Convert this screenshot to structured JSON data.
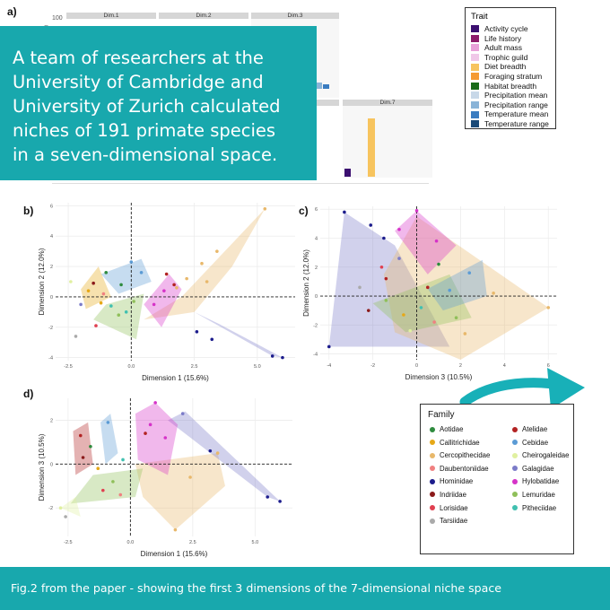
{
  "panel_labels": {
    "a": "a)",
    "b": "b)",
    "c": "c)",
    "d": "d)"
  },
  "top_chart": {
    "ytick_top": "100",
    "ylabel_partial": "on",
    "facets": [
      "Dim.1",
      "Dim.2",
      "Dim.3",
      "Dim.7"
    ]
  },
  "overlay_text": {
    "lines": [
      "A team of researchers at the",
      "University of Cambridge and",
      "University of Zurich calculated",
      "niches of 191 primate species",
      "in a seven-dimensional space."
    ],
    "background": "#18a8ad"
  },
  "trait_legend": {
    "title": "Trait",
    "items": [
      {
        "label": "Activity cycle",
        "color": "#3b0f70"
      },
      {
        "label": "Life history",
        "color": "#8c1a6a"
      },
      {
        "label": "Adult mass",
        "color": "#e8a0d8"
      },
      {
        "label": "Trophic guild",
        "color": "#f0c8e8"
      },
      {
        "label": "Diet breadth",
        "color": "#f7c45e"
      },
      {
        "label": "Foraging stratum",
        "color": "#f59a32"
      },
      {
        "label": "Habitat breadth",
        "color": "#1a6b1a"
      },
      {
        "label": "Precipitation mean",
        "color": "#c8d8e8"
      },
      {
        "label": "Precipitation range",
        "color": "#8ab4d8"
      },
      {
        "label": "Temperature mean",
        "color": "#3a7cc0"
      },
      {
        "label": "Temperature range",
        "color": "#1a4a78"
      }
    ]
  },
  "family_legend": {
    "title": "Family",
    "items": [
      {
        "label": "Aotidae",
        "color": "#2e8b3e"
      },
      {
        "label": "Atelidae",
        "color": "#b22222"
      },
      {
        "label": "Callitrichidae",
        "color": "#e6a817"
      },
      {
        "label": "Cebidae",
        "color": "#5b9bd5"
      },
      {
        "label": "Cercopithecidae",
        "color": "#e8b86b"
      },
      {
        "label": "Cheirogaleidae",
        "color": "#e0f0a0"
      },
      {
        "label": "Daubentoniidae",
        "color": "#f08080"
      },
      {
        "label": "Galagidae",
        "color": "#7b7bc8"
      },
      {
        "label": "Hominidae",
        "color": "#1c1c8c"
      },
      {
        "label": "Hylobatidae",
        "color": "#d633c8"
      },
      {
        "label": "Indriidae",
        "color": "#8b1a1a"
      },
      {
        "label": "Lemuridae",
        "color": "#8fbf5a"
      },
      {
        "label": "Lorisidae",
        "color": "#e04050"
      },
      {
        "label": "Pitheciidae",
        "color": "#40c0b0"
      },
      {
        "label": "Tarsiidae",
        "color": "#aaaaaa"
      }
    ]
  },
  "chart_data": [
    {
      "type": "bar",
      "panel": "a)",
      "facets": [
        "Dim.1",
        "Dim.2",
        "Dim.3",
        "Dim.7"
      ],
      "yticks": [
        100
      ],
      "note": "partially covered by overlay text box",
      "visible_bars": [
        {
          "facet": "Dim.3",
          "trait": "Precipitation range",
          "value": 10
        },
        {
          "facet": "Dim.3",
          "trait": "Temperature mean",
          "value": 8
        },
        {
          "facet": "Dim.7",
          "trait": "Activity cycle",
          "value": 10
        },
        {
          "facet": "Dim.7",
          "trait": "Diet breadth",
          "value": 80
        }
      ]
    },
    {
      "type": "scatter",
      "panel": "b)",
      "xlabel": "Dimension 1 (15.6%)",
      "ylabel": "Dimension 2 (12.0%)",
      "xlim": [
        -3,
        6.5
      ],
      "ylim": [
        -4.2,
        6.2
      ],
      "xticks": [
        "-2.5",
        "0.0",
        "2.5",
        "5.0"
      ],
      "yticks": [
        "6",
        "4",
        "2",
        "0",
        "-2",
        "-4"
      ],
      "xticks_num": [
        -2.5,
        0,
        2.5,
        5.0
      ],
      "yticks_num": [
        6,
        4,
        2,
        0,
        -2,
        -4
      ],
      "hulls": [
        {
          "family": "Cercopithecidae",
          "points": [
            [
              2.0,
              0.0
            ],
            [
              5.3,
              5.8
            ],
            [
              4.0,
              2.0
            ],
            [
              2.5,
              -1.0
            ],
            [
              0.5,
              -1.5
            ]
          ]
        },
        {
          "family": "Galagidae",
          "points": [
            [
              2.5,
              -1.0
            ],
            [
              5.6,
              -3.9
            ],
            [
              6.0,
              -4.0
            ],
            [
              3.5,
              -1.8
            ]
          ]
        },
        {
          "family": "Hylobatidae",
          "points": [
            [
              0.5,
              -0.5
            ],
            [
              1.5,
              1.5
            ],
            [
              2.0,
              0.5
            ],
            [
              1.2,
              -2.0
            ]
          ]
        },
        {
          "family": "Cebidae",
          "points": [
            [
              -1.2,
              1.5
            ],
            [
              0.4,
              2.5
            ],
            [
              0.8,
              1.0
            ],
            [
              -0.5,
              0.2
            ]
          ]
        },
        {
          "family": "Callitrichidae",
          "points": [
            [
              -2.0,
              0.5
            ],
            [
              -1.3,
              2.0
            ],
            [
              -0.8,
              0.0
            ],
            [
              -1.8,
              -0.8
            ]
          ]
        },
        {
          "family": "Lemuridae",
          "points": [
            [
              -1.0,
              -0.5
            ],
            [
              0.5,
              0.2
            ],
            [
              0.2,
              -2.8
            ],
            [
              -1.5,
              -1.5
            ]
          ]
        }
      ],
      "points": [
        {
          "family": "Hominidae",
          "x": 5.6,
          "y": -3.9
        },
        {
          "family": "Hominidae",
          "x": 6.0,
          "y": -4.0
        },
        {
          "family": "Hominidae",
          "x": 3.2,
          "y": -2.8
        },
        {
          "family": "Hominidae",
          "x": 2.6,
          "y": -2.3
        },
        {
          "family": "Cercopithecidae",
          "x": 5.3,
          "y": 5.8
        },
        {
          "family": "Cercopithecidae",
          "x": 3.4,
          "y": 3.0
        },
        {
          "family": "Cercopithecidae",
          "x": 2.8,
          "y": 2.2
        },
        {
          "family": "Cercopithecidae",
          "x": 2.2,
          "y": 1.2
        },
        {
          "family": "Cercopithecidae",
          "x": 3.0,
          "y": 1.0
        },
        {
          "family": "Cercopithecidae",
          "x": 1.8,
          "y": 0.6
        },
        {
          "family": "Hylobatidae",
          "x": 1.3,
          "y": 0.4
        },
        {
          "family": "Hylobatidae",
          "x": 0.9,
          "y": -0.5
        },
        {
          "family": "Atelidae",
          "x": 1.4,
          "y": 1.5
        },
        {
          "family": "Atelidae",
          "x": 1.7,
          "y": 0.8
        },
        {
          "family": "Cebidae",
          "x": 0.0,
          "y": 2.3
        },
        {
          "family": "Cebidae",
          "x": 0.4,
          "y": 1.6
        },
        {
          "family": "Aotidae",
          "x": -1.0,
          "y": 1.6
        },
        {
          "family": "Aotidae",
          "x": -0.4,
          "y": 0.8
        },
        {
          "family": "Callitrichidae",
          "x": -1.7,
          "y": 0.4
        },
        {
          "family": "Callitrichidae",
          "x": -1.2,
          "y": -0.4
        },
        {
          "family": "Lemuridae",
          "x": -0.5,
          "y": -1.2
        },
        {
          "family": "Lemuridae",
          "x": 0.1,
          "y": -0.3
        },
        {
          "family": "Pitheciidae",
          "x": -0.8,
          "y": -0.6
        },
        {
          "family": "Pitheciidae",
          "x": -0.2,
          "y": -1.0
        },
        {
          "family": "Indriidae",
          "x": -1.5,
          "y": 0.9
        },
        {
          "family": "Galagidae",
          "x": -2.0,
          "y": -0.5
        },
        {
          "family": "Tarsiidae",
          "x": -2.2,
          "y": -2.6
        },
        {
          "family": "Lorisidae",
          "x": -1.4,
          "y": -1.9
        },
        {
          "family": "Cheirogaleidae",
          "x": -2.4,
          "y": 1.0
        },
        {
          "family": "Daubentoniidae",
          "x": -1.1,
          "y": 0.2
        }
      ]
    },
    {
      "type": "scatter",
      "panel": "c)",
      "xlabel": "Dimension 3 (10.5%)",
      "ylabel": "Dimension 2 (12.0%)",
      "xlim": [
        -4.4,
        6.4
      ],
      "ylim": [
        -4.4,
        6.2
      ],
      "xticks": [
        "-4",
        "-2",
        "0",
        "2",
        "4",
        "6"
      ],
      "yticks": [
        "6",
        "4",
        "2",
        "0",
        "-2",
        "-4"
      ],
      "xticks_num": [
        -4,
        -2,
        0,
        2,
        4,
        6
      ],
      "yticks_num": [
        6,
        4,
        2,
        0,
        -2,
        -4
      ],
      "hulls": [
        {
          "family": "Galagidae",
          "points": [
            [
              -4.0,
              -3.5
            ],
            [
              -3.3,
              5.8
            ],
            [
              -1.0,
              3.5
            ],
            [
              1.5,
              -3.5
            ]
          ]
        },
        {
          "family": "Cercopithecidae",
          "points": [
            [
              0.0,
              5.5
            ],
            [
              6.0,
              -0.8
            ],
            [
              2.0,
              -4.4
            ],
            [
              -1.0,
              -2.5
            ],
            [
              -1.5,
              1.5
            ]
          ]
        },
        {
          "family": "Hylobatidae",
          "points": [
            [
              -1.0,
              4.5
            ],
            [
              0.0,
              5.9
            ],
            [
              1.8,
              3.5
            ],
            [
              0.5,
              1.5
            ]
          ]
        },
        {
          "family": "Lemuridae",
          "points": [
            [
              -2.0,
              -0.5
            ],
            [
              1.5,
              1.5
            ],
            [
              2.5,
              -1.5
            ],
            [
              -0.5,
              -2.5
            ]
          ]
        },
        {
          "family": "Cebidae",
          "points": [
            [
              0.5,
              0.5
            ],
            [
              3.0,
              2.5
            ],
            [
              3.2,
              0.0
            ],
            [
              1.2,
              -1.0
            ]
          ]
        }
      ],
      "points": [
        {
          "family": "Hominidae",
          "x": -4.0,
          "y": -3.5
        },
        {
          "family": "Hominidae",
          "x": -3.3,
          "y": 5.8
        },
        {
          "family": "Hominidae",
          "x": -2.1,
          "y": 4.9
        },
        {
          "family": "Hominidae",
          "x": -1.5,
          "y": 4.0
        },
        {
          "family": "Cercopithecidae",
          "x": 6.0,
          "y": -0.8
        },
        {
          "family": "Cercopithecidae",
          "x": 3.5,
          "y": 0.2
        },
        {
          "family": "Cercopithecidae",
          "x": 2.2,
          "y": -2.6
        },
        {
          "family": "Hylobatidae",
          "x": 0.0,
          "y": 5.9
        },
        {
          "family": "Hylobatidae",
          "x": -0.8,
          "y": 4.6
        },
        {
          "family": "Hylobatidae",
          "x": 0.9,
          "y": 3.8
        },
        {
          "family": "Atelidae",
          "x": -1.4,
          "y": 1.2
        },
        {
          "family": "Atelidae",
          "x": 0.5,
          "y": 0.6
        },
        {
          "family": "Cebidae",
          "x": 2.4,
          "y": 1.6
        },
        {
          "family": "Cebidae",
          "x": 1.5,
          "y": 0.4
        },
        {
          "family": "Aotidae",
          "x": 1.0,
          "y": 2.2
        },
        {
          "family": "Callitrichidae",
          "x": -0.6,
          "y": -1.3
        },
        {
          "family": "Lemuridae",
          "x": 1.8,
          "y": -1.5
        },
        {
          "family": "Lemuridae",
          "x": -1.4,
          "y": -0.3
        },
        {
          "family": "Pitheciidae",
          "x": 0.2,
          "y": -0.8
        },
        {
          "family": "Indriidae",
          "x": -2.2,
          "y": -1.0
        },
        {
          "family": "Galagidae",
          "x": -0.8,
          "y": 2.6
        },
        {
          "family": "Lorisidae",
          "x": -1.6,
          "y": 2.0
        },
        {
          "family": "Cheirogaleidae",
          "x": -0.3,
          "y": -2.4
        },
        {
          "family": "Daubentoniidae",
          "x": 0.8,
          "y": -1.8
        },
        {
          "family": "Tarsiidae",
          "x": -2.6,
          "y": 0.6
        }
      ]
    },
    {
      "type": "scatter",
      "panel": "d)",
      "xlabel": "Dimension 1 (15.6%)",
      "ylabel": "Dimension 3 (10.5%)",
      "xlim": [
        -3,
        6.5
      ],
      "ylim": [
        -3.3,
        3.0
      ],
      "xticks": [
        "-2.5",
        "0.0",
        "2.5",
        "5.0"
      ],
      "yticks": [
        "2",
        "0",
        "-2"
      ],
      "xticks_num": [
        -2.5,
        0,
        2.5,
        5.0
      ],
      "yticks_num": [
        2,
        0,
        -2
      ],
      "hulls": [
        {
          "family": "Cercopithecidae",
          "points": [
            [
              0.2,
              0.0
            ],
            [
              3.5,
              0.5
            ],
            [
              3.8,
              -1.0
            ],
            [
              1.8,
              -3.0
            ],
            [
              0.5,
              -1.5
            ]
          ]
        },
        {
          "family": "Galagidae",
          "points": [
            [
              1.5,
              2.0
            ],
            [
              2.2,
              2.4
            ],
            [
              6.0,
              -1.7
            ],
            [
              5.5,
              -1.5
            ]
          ]
        },
        {
          "family": "Hylobatidae",
          "points": [
            [
              0.2,
              2.3
            ],
            [
              1.0,
              2.8
            ],
            [
              1.9,
              1.8
            ],
            [
              1.5,
              -0.5
            ],
            [
              0.3,
              0.2
            ]
          ]
        },
        {
          "family": "Atelidae",
          "points": [
            [
              -2.3,
              1.5
            ],
            [
              -1.7,
              1.9
            ],
            [
              -1.5,
              0.0
            ],
            [
              -2.2,
              -0.5
            ]
          ]
        },
        {
          "family": "Cebidae",
          "points": [
            [
              -1.2,
              1.9
            ],
            [
              -0.8,
              2.3
            ],
            [
              -0.5,
              0.5
            ],
            [
              -1.0,
              0.0
            ]
          ]
        },
        {
          "family": "Lemuridae",
          "points": [
            [
              -1.5,
              -0.5
            ],
            [
              0.5,
              -0.2
            ],
            [
              0.2,
              -1.5
            ],
            [
              -2.4,
              -1.8
            ]
          ]
        },
        {
          "family": "Cheirogaleidae",
          "points": [
            [
              -2.8,
              -2.0
            ],
            [
              -2.2,
              -1.5
            ],
            [
              -2.0,
              -2.4
            ]
          ]
        }
      ],
      "points": [
        {
          "family": "Hominidae",
          "x": 6.0,
          "y": -1.7
        },
        {
          "family": "Hominidae",
          "x": 5.5,
          "y": -1.5
        },
        {
          "family": "Hominidae",
          "x": 3.2,
          "y": 0.6
        },
        {
          "family": "Cercopithecidae",
          "x": 1.8,
          "y": -3.0
        },
        {
          "family": "Cercopithecidae",
          "x": 3.5,
          "y": 0.5
        },
        {
          "family": "Cercopithecidae",
          "x": 2.4,
          "y": -0.6
        },
        {
          "family": "Hylobatidae",
          "x": 1.0,
          "y": 2.8
        },
        {
          "family": "Hylobatidae",
          "x": 0.8,
          "y": 1.8
        },
        {
          "family": "Hylobatidae",
          "x": 1.4,
          "y": 1.2
        },
        {
          "family": "Atelidae",
          "x": -2.0,
          "y": 1.3
        },
        {
          "family": "Atelidae",
          "x": 0.6,
          "y": 1.4
        },
        {
          "family": "Cebidae",
          "x": -0.9,
          "y": 1.9
        },
        {
          "family": "Aotidae",
          "x": -1.6,
          "y": 0.8
        },
        {
          "family": "Callitrichidae",
          "x": -1.3,
          "y": -0.2
        },
        {
          "family": "Lemuridae",
          "x": -0.7,
          "y": -0.8
        },
        {
          "family": "Pitheciidae",
          "x": -0.3,
          "y": 0.2
        },
        {
          "family": "Indriidae",
          "x": -1.9,
          "y": 0.3
        },
        {
          "family": "Galagidae",
          "x": 2.1,
          "y": 2.3
        },
        {
          "family": "Lorisidae",
          "x": -1.1,
          "y": -1.2
        },
        {
          "family": "Cheirogaleidae",
          "x": -2.8,
          "y": -2.0
        },
        {
          "family": "Daubentoniidae",
          "x": -0.4,
          "y": -1.4
        },
        {
          "family": "Tarsiidae",
          "x": -2.6,
          "y": -2.4
        }
      ]
    }
  ],
  "footer": {
    "text": "Fig.2 from the paper - showing the first 3 dimensions of the 7-dimensional niche space",
    "background": "#18a8ad"
  },
  "arrow": {
    "color": "#18b0b8",
    "icon": "right-arrow-icon"
  }
}
